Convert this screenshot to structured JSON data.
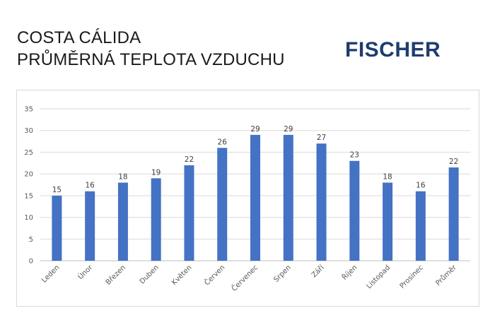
{
  "header": {
    "title_line1": "COSTA CÁLIDA",
    "title_line2": "PRŮMĚRNÁ TEPLOTA VZDUCHU"
  },
  "logo": {
    "text": "FISCHER",
    "color": "#1f3c70"
  },
  "chart_data": {
    "type": "bar",
    "categories": [
      "Leden",
      "Únor",
      "Březen",
      "Duben",
      "Květen",
      "Červen",
      "Červenec",
      "Srpen",
      "Září",
      "Říjen",
      "Listopad",
      "Prosinec",
      "Průměr"
    ],
    "values": [
      15,
      16,
      18,
      19,
      22,
      26,
      29,
      29,
      27,
      23,
      18,
      16,
      21.5
    ],
    "data_labels": [
      "15",
      "16",
      "18",
      "19",
      "22",
      "26",
      "29",
      "29",
      "27",
      "23",
      "18",
      "16",
      "22"
    ],
    "ylim": [
      0,
      35
    ],
    "yticks": [
      0,
      5,
      10,
      15,
      20,
      25,
      30,
      35
    ],
    "grid": true,
    "bar_color": "#4472c4"
  }
}
